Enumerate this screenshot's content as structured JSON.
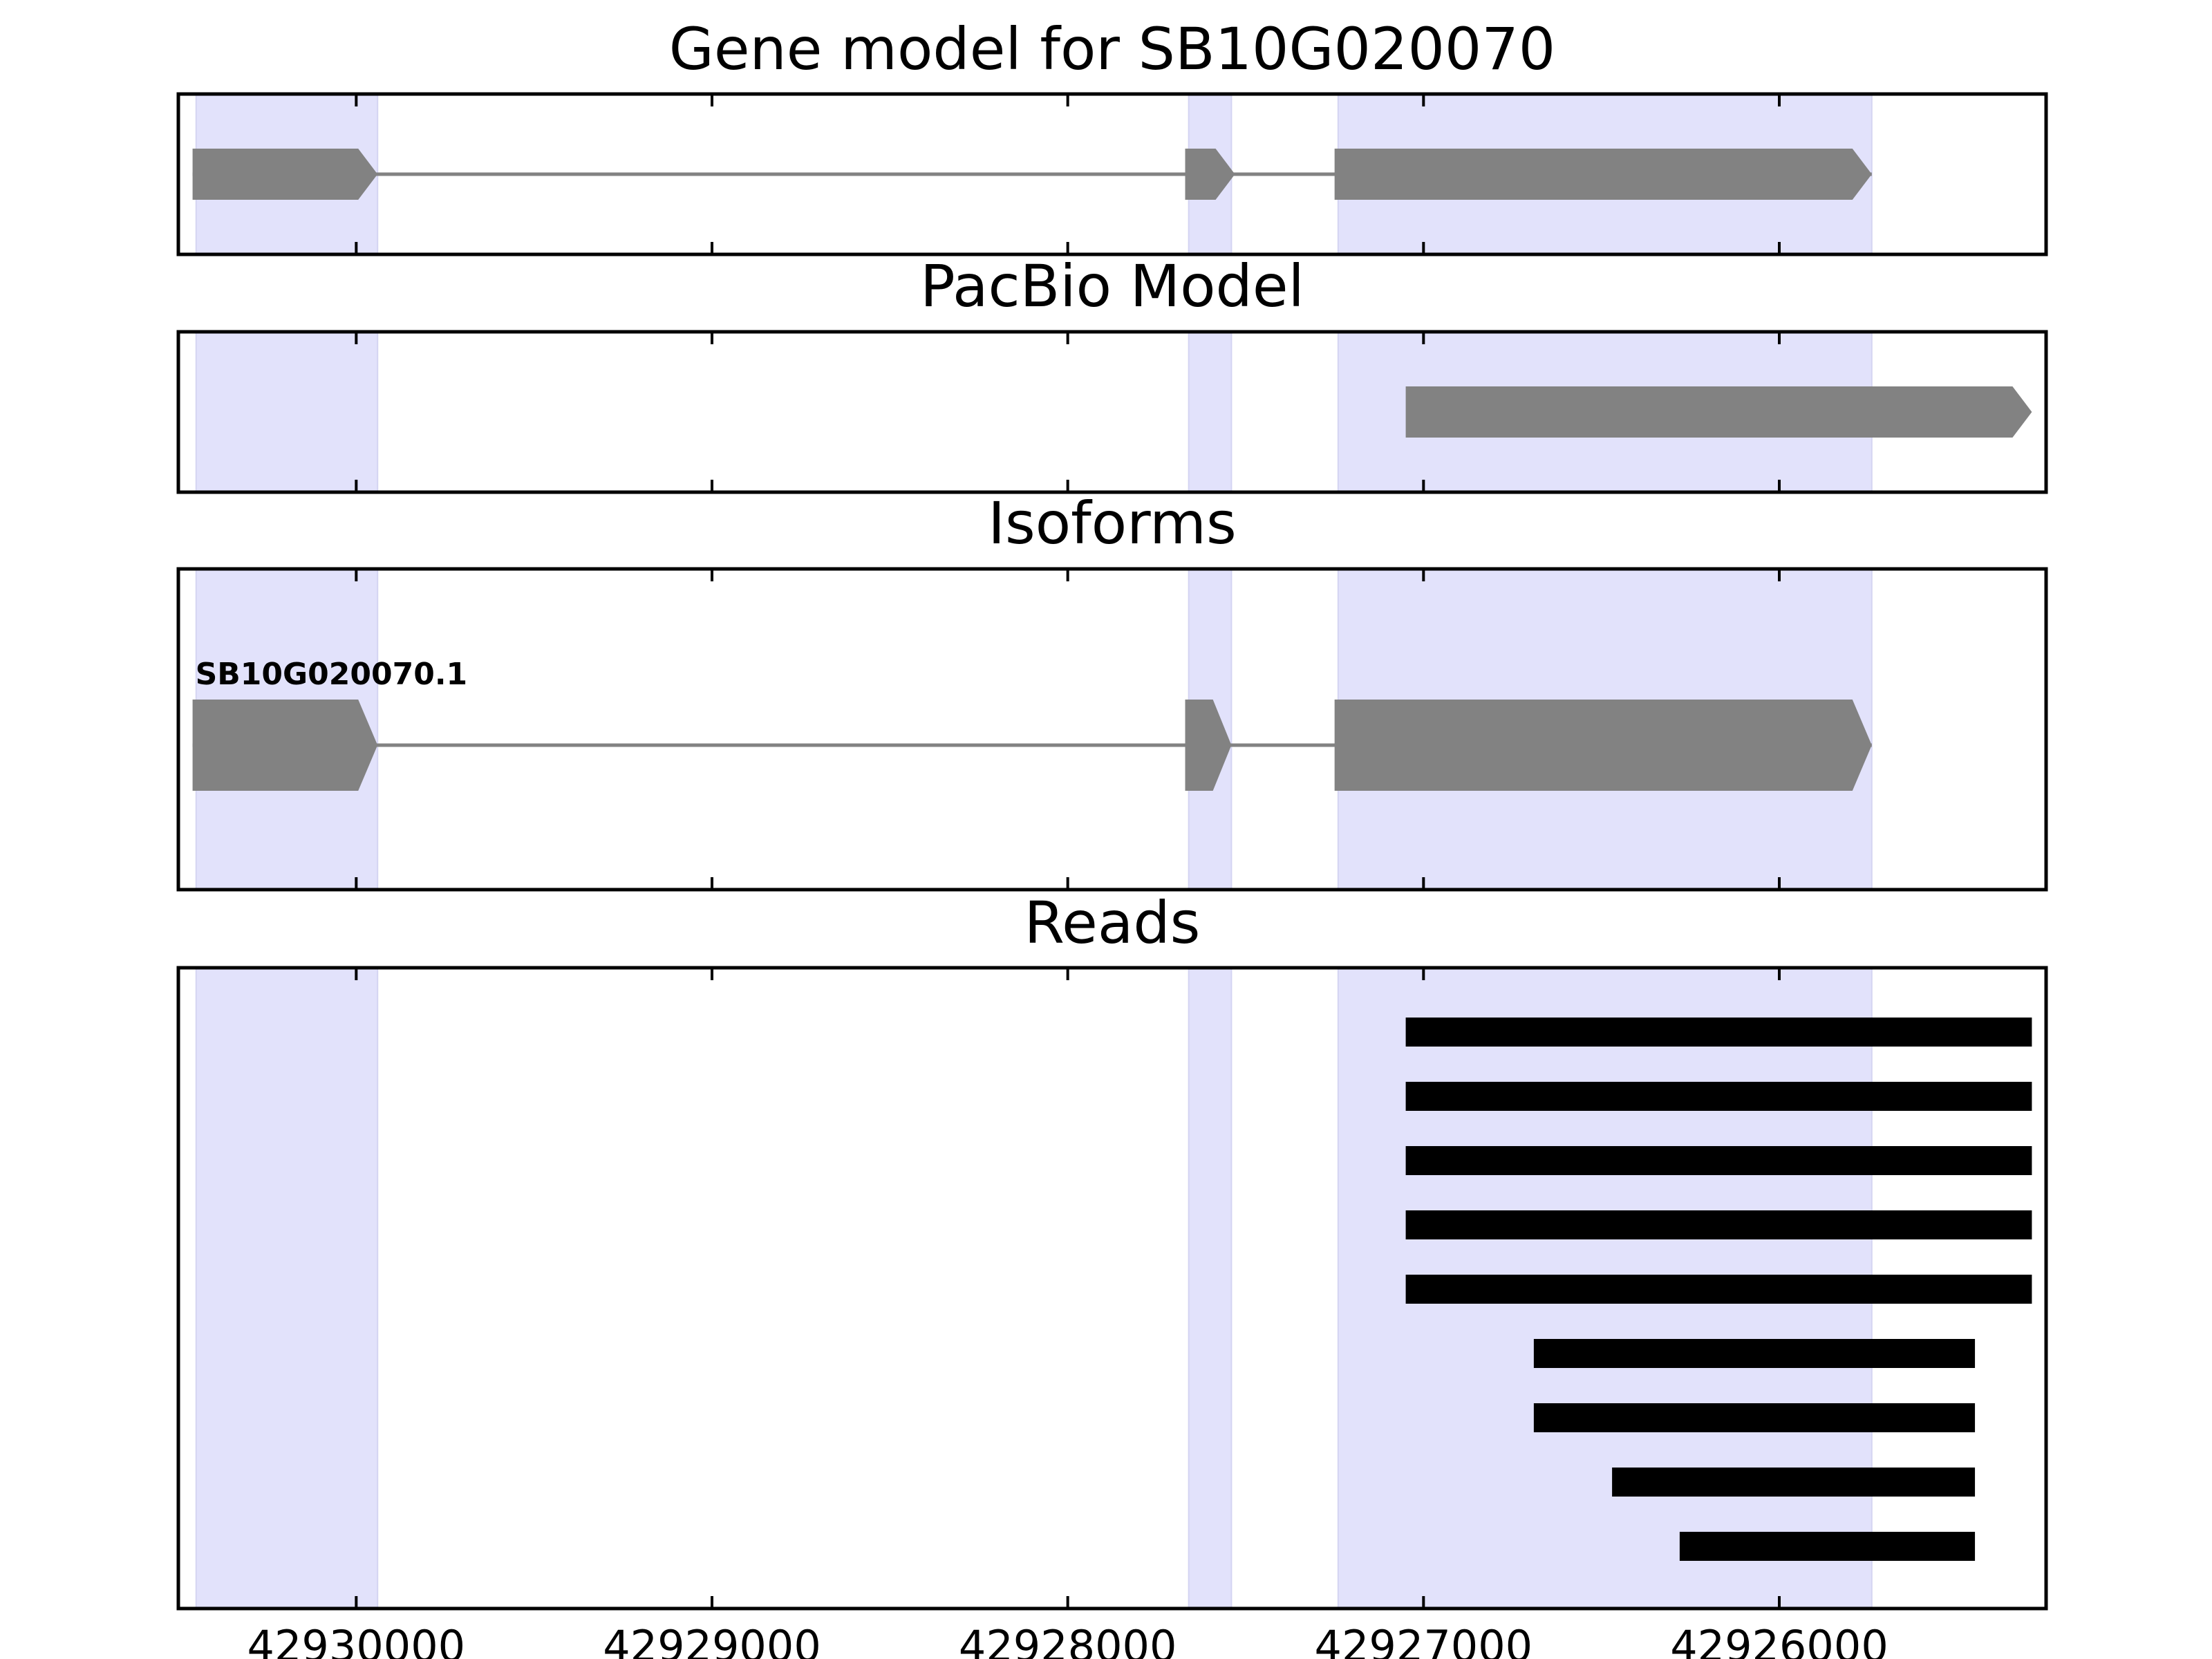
{
  "chart_data": {
    "type": "gene-track",
    "x_axis": {
      "xlim": [
        42930500,
        42925250
      ],
      "ticks": [
        42930000,
        42929000,
        42928000,
        42927000,
        42926000
      ],
      "tick_labels": [
        "42930000",
        "42929000",
        "42928000",
        "42927000",
        "42926000"
      ]
    },
    "highlight_color": "#e2e2fb",
    "highlight_regions": [
      [
        42930450,
        42929940
      ],
      [
        42927660,
        42927540
      ],
      [
        42927240,
        42925740
      ]
    ],
    "panels": [
      {
        "id": "gene-model",
        "title": "Gene model for SB10G020070",
        "features": [
          {
            "label": "",
            "color": "#828282",
            "exons": [
              [
                42930460,
                42929940
              ],
              [
                42927670,
                42927530
              ],
              [
                42927250,
                42925740
              ]
            ]
          }
        ]
      },
      {
        "id": "pacbio-model",
        "title": "PacBio Model",
        "features": [
          {
            "label": "",
            "color": "#828282",
            "exons": [
              [
                42927050,
                42925290
              ]
            ]
          }
        ]
      },
      {
        "id": "isoforms",
        "title": "Isoforms",
        "features": [
          {
            "label": "SB10G020070.1",
            "color": "#828282",
            "exons": [
              [
                42930460,
                42929940
              ],
              [
                42927670,
                42927540
              ],
              [
                42927250,
                42925740
              ]
            ]
          }
        ]
      },
      {
        "id": "reads",
        "title": "Reads",
        "color": "#000000",
        "reads": [
          [
            42927050,
            42925290
          ],
          [
            42927050,
            42925290
          ],
          [
            42927050,
            42925290
          ],
          [
            42927050,
            42925290
          ],
          [
            42927050,
            42925290
          ],
          [
            42926690,
            42925450
          ],
          [
            42926690,
            42925450
          ],
          [
            42926470,
            42925450
          ],
          [
            42926280,
            42925450
          ]
        ]
      }
    ]
  }
}
